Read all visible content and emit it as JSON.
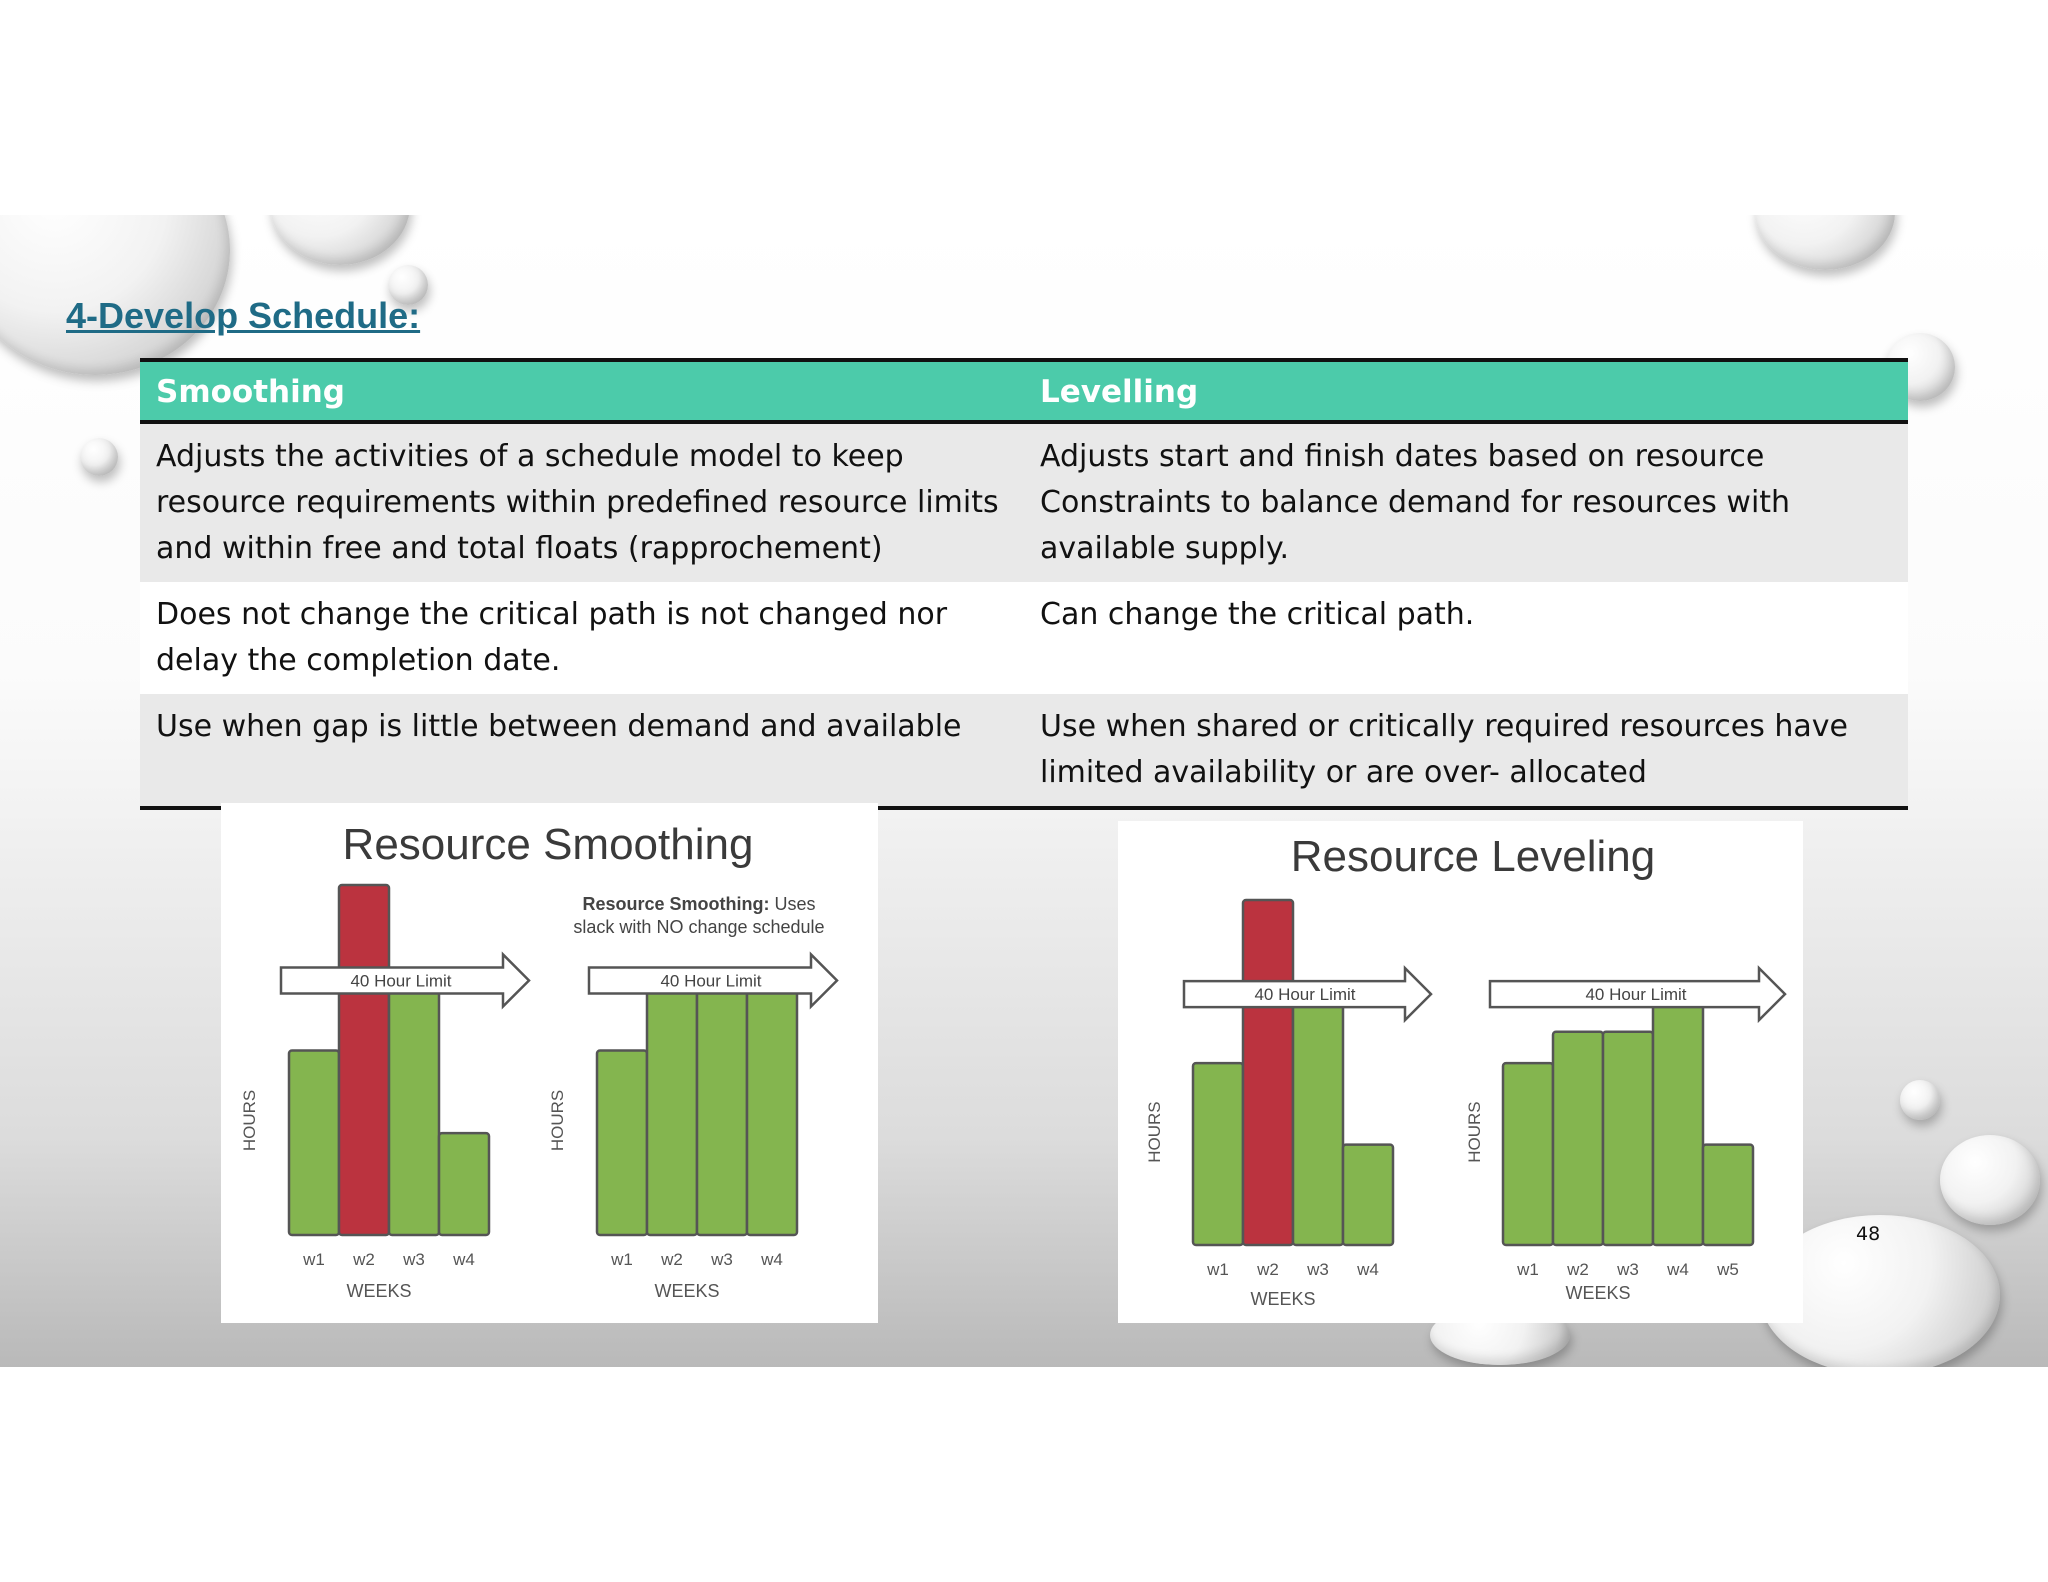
{
  "heading": "4-Develop Schedule:",
  "table": {
    "headers": [
      "Smoothing",
      "Levelling"
    ],
    "rows": [
      [
        "Adjusts the activities of a schedule model to keep resource requirements within predefined resource limits and within free and total floats (rapprochement)",
        "Adjusts start and finish dates based on resource Constraints to balance demand for resources with available supply."
      ],
      [
        "Does not change the critical path is not changed nor delay the completion date.",
        "Can change the critical path."
      ],
      [
        "Use when gap is little between demand and available",
        "Use when shared or critically required resources have limited availability or are over- allocated"
      ]
    ]
  },
  "figures": {
    "smoothing": {
      "title": "Resource Smoothing",
      "note_bold": "Resource Smoothing:",
      "note_line1_rest": " Uses",
      "note_line2": "slack with NO change schedule",
      "limit_label": "40 Hour Limit",
      "ylabel": "HOURS",
      "xlabel": "WEEKS"
    },
    "leveling": {
      "title": "Resource Leveling",
      "limit_label": "40 Hour Limit",
      "ylabel": "HOURS",
      "xlabel": "WEEKS"
    }
  },
  "chart_data": [
    {
      "type": "bar",
      "title": "",
      "categories": [
        "w1",
        "w2",
        "w3",
        "w4"
      ],
      "values": [
        29,
        55,
        39,
        16
      ],
      "limit": 40,
      "ylim": [
        0,
        60
      ],
      "xlabel": "WEEKS",
      "ylabel": "HOURS",
      "colors": [
        "#84b54f",
        "#bb333f",
        "#84b54f",
        "#84b54f"
      ]
    },
    {
      "type": "bar",
      "title": "",
      "categories": [
        "w1",
        "w2",
        "w3",
        "w4"
      ],
      "values": [
        29,
        39,
        39,
        39
      ],
      "limit": 40,
      "ylim": [
        0,
        60
      ],
      "xlabel": "WEEKS",
      "ylabel": "HOURS",
      "colors": [
        "#84b54f",
        "#84b54f",
        "#84b54f",
        "#84b54f"
      ]
    },
    {
      "type": "bar",
      "title": "",
      "categories": [
        "w1",
        "w2",
        "w3",
        "w4"
      ],
      "values": [
        29,
        55,
        39,
        16
      ],
      "limit": 40,
      "ylim": [
        0,
        60
      ],
      "xlabel": "WEEKS",
      "ylabel": "HOURS",
      "colors": [
        "#84b54f",
        "#bb333f",
        "#84b54f",
        "#84b54f"
      ]
    },
    {
      "type": "bar",
      "title": "",
      "categories": [
        "w1",
        "w2",
        "w3",
        "w4",
        "w5"
      ],
      "values": [
        29,
        34,
        34,
        39,
        16
      ],
      "limit": 40,
      "ylim": [
        0,
        60
      ],
      "xlabel": "WEEKS",
      "ylabel": "HOURS",
      "colors": [
        "#84b54f",
        "#84b54f",
        "#84b54f",
        "#84b54f",
        "#84b54f"
      ]
    }
  ],
  "page_number": "48",
  "colors": {
    "header_bg": "#4ccbaa",
    "heading": "#1f6b86",
    "bar_green": "#84b54f",
    "bar_red": "#bb333f"
  }
}
